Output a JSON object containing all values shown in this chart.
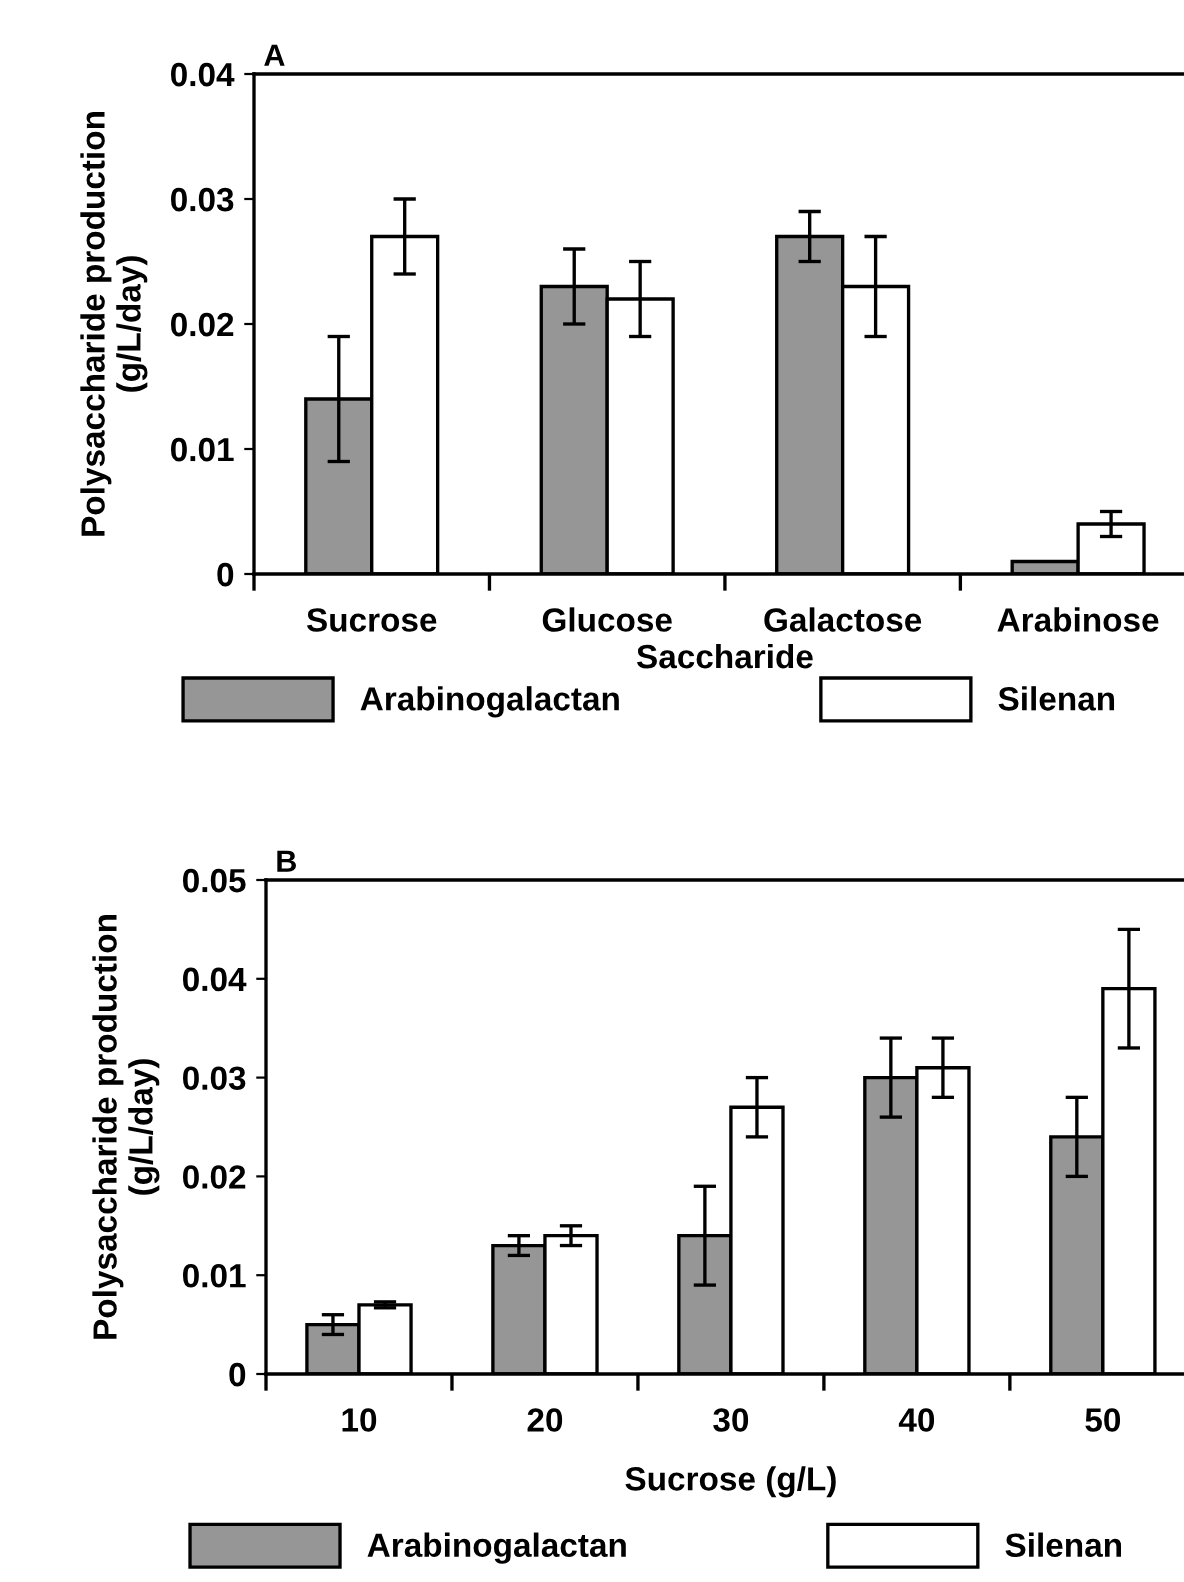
{
  "chart_data": [
    {
      "type": "bar",
      "title": "A",
      "xlabel": "Saccharide",
      "ylabel": "Polysaccharide production\n(g/L/day)",
      "categories": [
        "Sucrose",
        "Glucose",
        "Galactose",
        "Arabinose"
      ],
      "series": [
        {
          "name": "Arabinogalactan",
          "color": "#969696",
          "values": [
            0.014,
            0.023,
            0.027,
            0.001
          ],
          "errors": [
            0.005,
            0.003,
            0.002,
            null
          ]
        },
        {
          "name": "Silenan",
          "color": "#ffffff",
          "values": [
            0.027,
            0.022,
            0.023,
            0.004
          ],
          "errors": [
            0.003,
            0.003,
            0.004,
            0.001
          ]
        }
      ],
      "ylim": [
        0,
        0.04
      ],
      "yticks": [
        {
          "value": 0,
          "label": "0"
        },
        0.01,
        0.02,
        0.03,
        0.04
      ],
      "grid": false,
      "legend": "bottom"
    },
    {
      "type": "bar",
      "title": "B",
      "xlabel": "Sucrose (g/L)",
      "ylabel": "Polysaccharide production\n(g/L/day)",
      "categories": [
        "10",
        "20",
        "30",
        "40",
        "50"
      ],
      "series": [
        {
          "name": "Arabinogalactan",
          "color": "#969696",
          "values": [
            0.005,
            0.013,
            0.014,
            0.03,
            0.024
          ],
          "errors": [
            0.001,
            0.001,
            0.005,
            0.004,
            0.004
          ]
        },
        {
          "name": "Silenan",
          "color": "#ffffff",
          "values": [
            0.007,
            0.014,
            0.027,
            0.031,
            0.039
          ],
          "errors": [
            0.0003,
            0.001,
            0.003,
            0.003,
            0.006
          ]
        }
      ],
      "ylim": [
        0,
        0.05
      ],
      "yticks": [
        {
          "value": 0,
          "label": "0"
        },
        0.01,
        0.02,
        0.03,
        0.04,
        0.05
      ],
      "grid": false,
      "legend": "bottom"
    }
  ]
}
